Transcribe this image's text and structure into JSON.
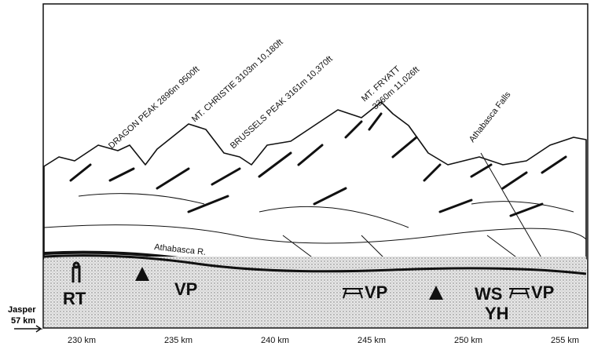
{
  "peaks": [
    "DRAGON PEAK 2896m 9500ft",
    "MT. CHRISTIE 3103m 10,180ft",
    "BRUSSELS PEAK 3161m 10,370ft",
    "MT. FRYATT",
    "3360m 11,026ft"
  ],
  "landmarks": {
    "falls": "Athabasca Falls",
    "river": "Athabasca R."
  },
  "facilities": [
    "RT",
    "VP",
    "VP",
    "WS",
    "VP",
    "YH"
  ],
  "origin": {
    "name": "Jasper",
    "distance": "57 km"
  },
  "axis": {
    "ticks": [
      "230 km",
      "235 km",
      "240 km",
      "245 km",
      "250 km",
      "255 km"
    ]
  }
}
